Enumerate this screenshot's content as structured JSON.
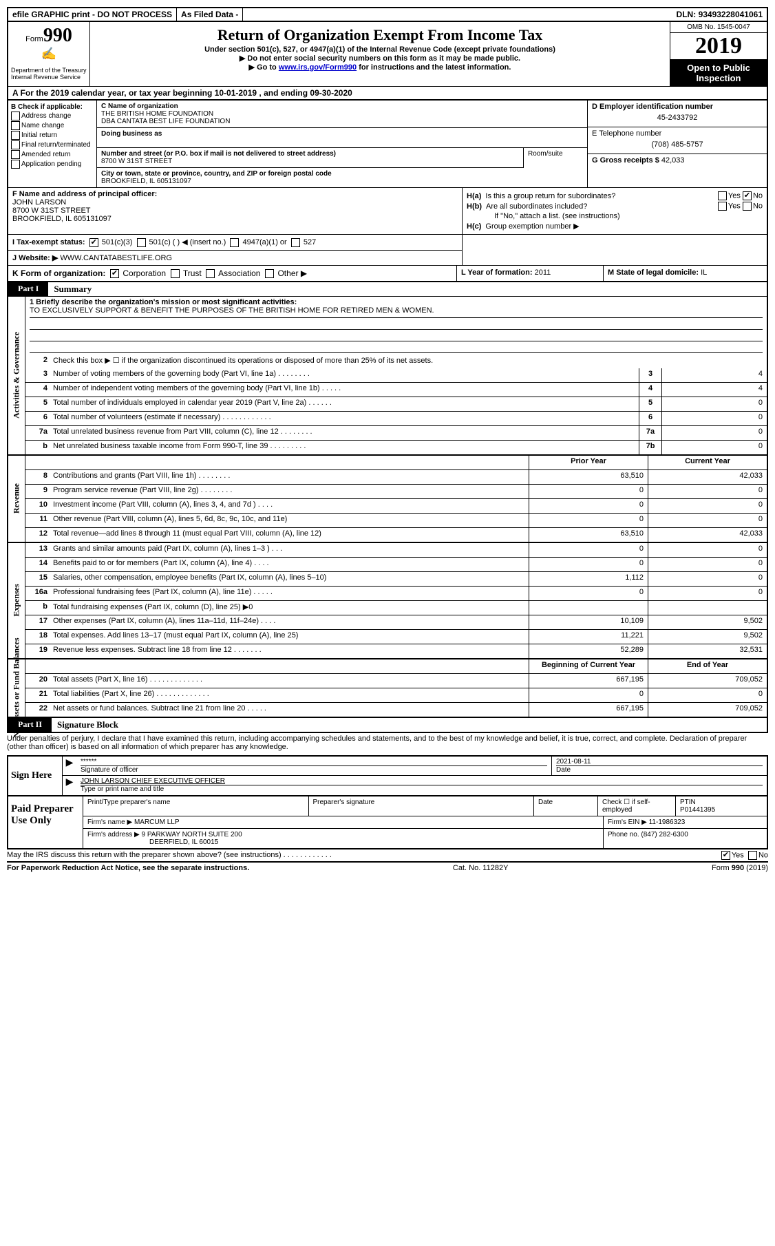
{
  "topbar": {
    "efile": "efile GRAPHIC print - DO NOT PROCESS",
    "asfiled": "As Filed Data -",
    "dln_label": "DLN:",
    "dln": "93493228041061"
  },
  "header": {
    "form_prefix": "Form",
    "form_no": "990",
    "dept": "Department of the Treasury\nInternal Revenue Service",
    "title": "Return of Organization Exempt From Income Tax",
    "sub1": "Under section 501(c), 527, or 4947(a)(1) of the Internal Revenue Code (except private foundations)",
    "sub2": "▶ Do not enter social security numbers on this form as it may be made public.",
    "sub3_pre": "▶ Go to ",
    "sub3_link": "www.irs.gov/Form990",
    "sub3_post": " for instructions and the latest information.",
    "omb": "OMB No. 1545-0047",
    "year": "2019",
    "open": "Open to Public Inspection"
  },
  "lineA": {
    "text_pre": "A   For the 2019 calendar year, or tax year beginning ",
    "begin": "10-01-2019",
    "mid": "   , and ending ",
    "end": "09-30-2020"
  },
  "colB": {
    "label": "B Check if applicable:",
    "items": [
      "Address change",
      "Name change",
      "Initial return",
      "Final return/terminated",
      "Amended return",
      "Application pending"
    ]
  },
  "colC": {
    "name_lbl": "C Name of organization",
    "name1": "THE BRITISH HOME FOUNDATION",
    "name2": "DBA CANTATA BEST LIFE FOUNDATION",
    "dba_lbl": "Doing business as",
    "street_lbl": "Number and street (or P.O. box if mail is not delivered to street address)",
    "street": "8700 W 31ST STREET",
    "room_lbl": "Room/suite",
    "city_lbl": "City or town, state or province, country, and ZIP or foreign postal code",
    "city": "BROOKFIELD, IL  605131097"
  },
  "colD": {
    "ein_lbl": "D Employer identification number",
    "ein": "45-2433792",
    "tel_lbl": "E Telephone number",
    "tel": "(708) 485-5757",
    "gross_lbl": "G Gross receipts $",
    "gross": "42,033"
  },
  "colF": {
    "lbl": "F  Name and address of principal officer:",
    "name": "JOHN LARSON",
    "street": "8700 W 31ST STREET",
    "city": "BROOKFIELD, IL  605131097"
  },
  "colH": {
    "ha_lbl": "H(a)",
    "ha_text": "Is this a group return for subordinates?",
    "hb_lbl": "H(b)",
    "hb_text": "Are all subordinates included?",
    "hb_note": "If \"No,\" attach a list. (see instructions)",
    "hc_lbl": "H(c)",
    "hc_text": "Group exemption number ▶",
    "yes": "Yes",
    "no": "No"
  },
  "lineI": {
    "lbl": "I   Tax-exempt status:",
    "opts": [
      "501(c)(3)",
      "501(c) (   ) ◀ (insert no.)",
      "4947(a)(1) or",
      "527"
    ]
  },
  "lineJ": {
    "lbl": "J   Website: ▶",
    "val": "WWW.CANTATABESTLIFE.ORG"
  },
  "lineK": {
    "lbl": "K Form of organization:",
    "opts": [
      "Corporation",
      "Trust",
      "Association",
      "Other ▶"
    ],
    "l_lbl": "L Year of formation:",
    "l_val": "2011",
    "m_lbl": "M State of legal domicile:",
    "m_val": "IL"
  },
  "part1": {
    "tab": "Part I",
    "title": "Summary"
  },
  "gov": {
    "side": "Activities & Governance",
    "l1_lbl": "1 Briefly describe the organization's mission or most significant activities:",
    "l1_val": "TO EXCLUSIVELY SUPPORT & BENEFIT THE PURPOSES OF THE BRITISH HOME FOR RETIRED MEN & WOMEN.",
    "l2": "Check this box ▶ ☐  if the organization discontinued its operations or disposed of more than 25% of its net assets.",
    "lines": [
      {
        "n": "3",
        "d": "Number of voting members of the governing body (Part VI, line 1a)   .    .    .    .    .    .    .    .",
        "c": "3",
        "v": "4"
      },
      {
        "n": "4",
        "d": "Number of independent voting members of the governing body (Part VI, line 1b)   .    .    .    .    .",
        "c": "4",
        "v": "4"
      },
      {
        "n": "5",
        "d": "Total number of individuals employed in calendar year 2019 (Part V, line 2a)   .    .    .    .    .    .",
        "c": "5",
        "v": "0"
      },
      {
        "n": "6",
        "d": "Total number of volunteers (estimate if necessary)   .    .    .    .    .    .    .    .    .    .    .    .",
        "c": "6",
        "v": "0"
      },
      {
        "n": "7a",
        "d": "Total unrelated business revenue from Part VIII, column (C), line 12   .    .    .    .    .    .    .    .",
        "c": "7a",
        "v": "0"
      },
      {
        "n": "b",
        "d": "Net unrelated business taxable income from Form 990-T, line 39   .    .    .    .    .    .    .    .    .",
        "c": "7b",
        "v": "0"
      }
    ]
  },
  "rev": {
    "side": "Revenue",
    "head_py": "Prior Year",
    "head_cy": "Current Year",
    "lines": [
      {
        "n": "8",
        "d": "Contributions and grants (Part VIII, line 1h)   .    .    .    .    .    .    .    .",
        "py": "63,510",
        "cy": "42,033"
      },
      {
        "n": "9",
        "d": "Program service revenue (Part VIII, line 2g)   .    .    .    .    .    .    .    .",
        "py": "0",
        "cy": "0"
      },
      {
        "n": "10",
        "d": "Investment income (Part VIII, column (A), lines 3, 4, and 7d )   .    .    .    .",
        "py": "0",
        "cy": "0"
      },
      {
        "n": "11",
        "d": "Other revenue (Part VIII, column (A), lines 5, 6d, 8c, 9c, 10c, and 11e)",
        "py": "0",
        "cy": "0"
      },
      {
        "n": "12",
        "d": "Total revenue—add lines 8 through 11 (must equal Part VIII, column (A), line 12)",
        "py": "63,510",
        "cy": "42,033"
      }
    ]
  },
  "exp": {
    "side": "Expenses",
    "lines": [
      {
        "n": "13",
        "d": "Grants and similar amounts paid (Part IX, column (A), lines 1–3 )   .    .    .",
        "py": "0",
        "cy": "0"
      },
      {
        "n": "14",
        "d": "Benefits paid to or for members (Part IX, column (A), line 4)   .    .    .    .",
        "py": "0",
        "cy": "0"
      },
      {
        "n": "15",
        "d": "Salaries, other compensation, employee benefits (Part IX, column (A), lines 5–10)",
        "py": "1,112",
        "cy": "0"
      },
      {
        "n": "16a",
        "d": "Professional fundraising fees (Part IX, column (A), line 11e)   .    .    .    .    .",
        "py": "0",
        "cy": "0"
      },
      {
        "n": "b",
        "d": "Total fundraising expenses (Part IX, column (D), line 25)  ▶0",
        "py": "",
        "cy": ""
      },
      {
        "n": "17",
        "d": "Other expenses (Part IX, column (A), lines 11a–11d, 11f–24e)   .    .    .    .",
        "py": "10,109",
        "cy": "9,502"
      },
      {
        "n": "18",
        "d": "Total expenses. Add lines 13–17 (must equal Part IX, column (A), line 25)",
        "py": "11,221",
        "cy": "9,502"
      },
      {
        "n": "19",
        "d": "Revenue less expenses. Subtract line 18 from line 12   .    .    .    .    .    .    .",
        "py": "52,289",
        "cy": "32,531"
      }
    ]
  },
  "net": {
    "side": "Net Assets or Fund Balances",
    "head_py": "Beginning of Current Year",
    "head_cy": "End of Year",
    "lines": [
      {
        "n": "20",
        "d": "Total assets (Part X, line 16)   .    .    .    .    .    .    .    .    .    .    .    .    .",
        "py": "667,195",
        "cy": "709,052"
      },
      {
        "n": "21",
        "d": "Total liabilities (Part X, line 26) .    .    .    .    .    .    .    .    .    .    .    .    .",
        "py": "0",
        "cy": "0"
      },
      {
        "n": "22",
        "d": "Net assets or fund balances. Subtract line 21 from line 20 .    .    .    .    .",
        "py": "667,195",
        "cy": "709,052"
      }
    ]
  },
  "part2": {
    "tab": "Part II",
    "title": "Signature Block"
  },
  "perjury": "Under penalties of perjury, I declare that I have examined this return, including accompanying schedules and statements, and to the best of my knowledge and belief, it is true, correct, and complete. Declaration of preparer (other than officer) is based on all information of which preparer has any knowledge.",
  "sign": {
    "left": "Sign Here",
    "stars": "******",
    "sig_lbl": "Signature of officer",
    "date_val": "2021-08-11",
    "date_lbl": "Date",
    "name": "JOHN LARSON CHIEF EXECUTIVE OFFICER",
    "name_lbl": "Type or print name and title"
  },
  "prep": {
    "left": "Paid Preparer Use Only",
    "r1": {
      "c1": "Print/Type preparer's name",
      "c2": "Preparer's signature",
      "c3": "Date",
      "c4_lbl": "Check ☐ if self-employed",
      "c5_lbl": "PTIN",
      "c5_val": "P01441395"
    },
    "r2": {
      "lbl": "Firm's name    ▶",
      "val": "MARCUM LLP",
      "ein_lbl": "Firm's EIN ▶",
      "ein": "11-1986323"
    },
    "r3": {
      "lbl": "Firm's address ▶",
      "val": "9 PARKWAY NORTH SUITE 200",
      "city": "DEERFIELD, IL  60015",
      "phone_lbl": "Phone no.",
      "phone": "(847) 282-6300"
    }
  },
  "footer": {
    "discuss": "May the IRS discuss this return with the preparer shown above? (see instructions)   .    .    .    .    .    .    .    .    .    .    .    .",
    "yes": "Yes",
    "no": "No",
    "paperwork": "For Paperwork Reduction Act Notice, see the separate instructions.",
    "catno": "Cat. No. 11282Y",
    "formno": "Form 990 (2019)"
  }
}
